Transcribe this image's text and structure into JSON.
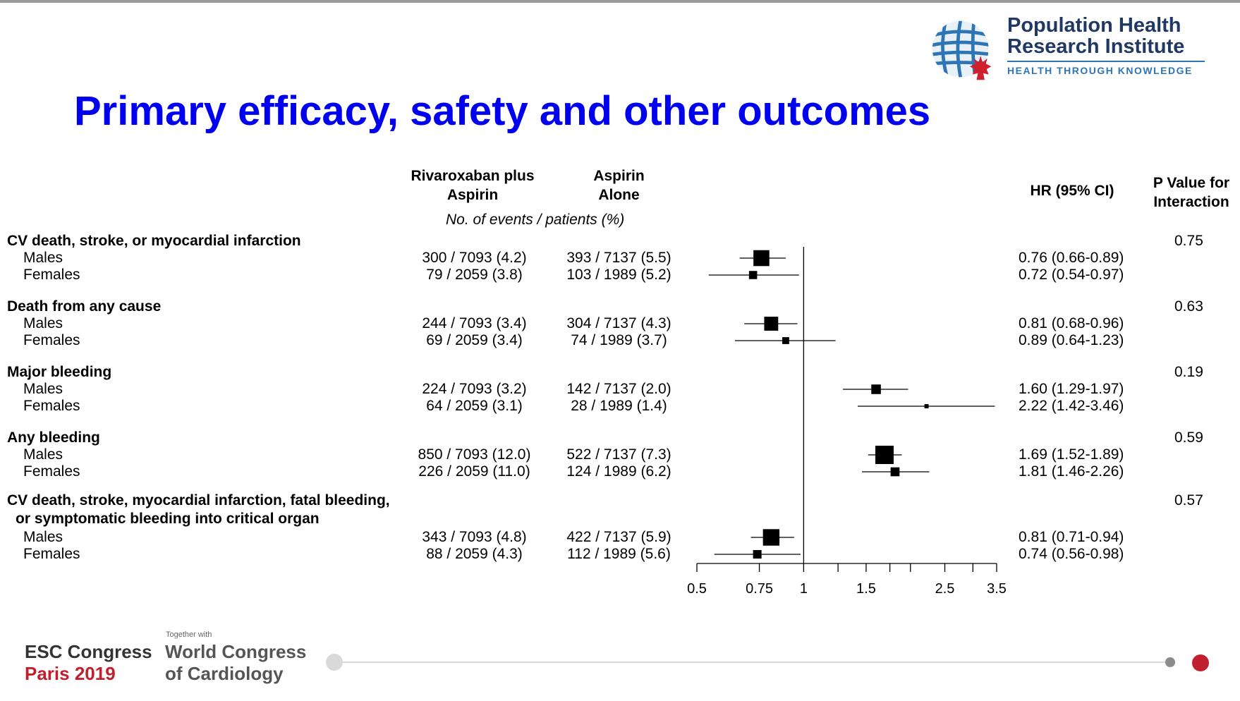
{
  "header": {
    "title": "Primary efficacy, safety and other outcomes",
    "logo": {
      "line1": "Population Health",
      "line2": "Research Institute",
      "tagline": "HEALTH THROUGH KNOWLEDGE",
      "colors": {
        "text": "#1f3864",
        "accent": "#2e75b6",
        "leaf": "#d0202e"
      }
    }
  },
  "columns": {
    "riva_line1": "Rivaroxaban plus",
    "riva_line2": "Aspirin",
    "asp_line1": "Aspirin",
    "asp_line2": "Alone",
    "events_note": "No. of events / patients (%)",
    "hr": "HR (95% CI)",
    "p_line1": "P Value for",
    "p_line2": "Interaction"
  },
  "outcomes": [
    {
      "label": "CV death, stroke, or myocardial infarction",
      "p": "0.75"
    },
    {
      "label": "Death from any cause",
      "p": "0.63"
    },
    {
      "label": "Major bleeding",
      "p": "0.19"
    },
    {
      "label": "Any bleeding",
      "p": "0.59"
    },
    {
      "label": "CV death, stroke, myocardial infarction, fatal bleeding,",
      "label2": "or symptomatic bleeding into critical organ",
      "p": "0.57"
    }
  ],
  "rows": [
    {
      "label": "Males",
      "riva": "300 / 7093 (4.2)",
      "asp": "393 / 7137 (5.5)",
      "hr_text": "0.76 (0.66-0.89)"
    },
    {
      "label": "Females",
      "riva": "79 / 2059 (3.8)",
      "asp": "103 / 1989 (5.2)",
      "hr_text": "0.72 (0.54-0.97)"
    },
    {
      "label": "Males",
      "riva": "244 / 7093 (3.4)",
      "asp": "304 / 7137 (4.3)",
      "hr_text": "0.81 (0.68-0.96)"
    },
    {
      "label": "Females",
      "riva": "69 / 2059 (3.4)",
      "asp": "74 / 1989 (3.7)",
      "hr_text": "0.89 (0.64-1.23)"
    },
    {
      "label": "Males",
      "riva": "224 / 7093 (3.2)",
      "asp": "142 / 7137 (2.0)",
      "hr_text": "1.60 (1.29-1.97)"
    },
    {
      "label": "Females",
      "riva": "64 / 2059 (3.1)",
      "asp": "28 / 1989 (1.4)",
      "hr_text": "2.22 (1.42-3.46)"
    },
    {
      "label": "Males",
      "riva": "850 / 7093 (12.0)",
      "asp": "522 / 7137 (7.3)",
      "hr_text": "1.69 (1.52-1.89)"
    },
    {
      "label": "Females",
      "riva": "226 / 2059 (11.0)",
      "asp": "124 / 1989 (6.2)",
      "hr_text": "1.81 (1.46-2.26)"
    },
    {
      "label": "Males",
      "riva": "343 / 7093 (4.8)",
      "asp": "422 / 7137 (5.9)",
      "hr_text": "0.81 (0.71-0.94)"
    },
    {
      "label": "Females",
      "riva": "88 / 2059 (4.3)",
      "asp": "112 / 1989 (5.6)",
      "hr_text": "0.74 (0.56-0.98)"
    }
  ],
  "chart_data": {
    "type": "forest",
    "x_scale": "log",
    "xlim": [
      0.5,
      3.5
    ],
    "reference_line": 1,
    "ticks": [
      0.5,
      0.75,
      1,
      1.25,
      1.5,
      1.75,
      2,
      2.5,
      3,
      3.5
    ],
    "tick_labels": [
      "0.5",
      "0.75",
      "1",
      "",
      "1.5",
      "",
      "",
      "2.5",
      "",
      "3.5"
    ],
    "points": [
      {
        "group": "CV death, stroke, or myocardial infarction",
        "subgroup": "Males",
        "hr": 0.76,
        "lo": 0.66,
        "hi": 0.89,
        "weight": 393
      },
      {
        "group": "CV death, stroke, or myocardial infarction",
        "subgroup": "Females",
        "hr": 0.72,
        "lo": 0.54,
        "hi": 0.97,
        "weight": 103
      },
      {
        "group": "Death from any cause",
        "subgroup": "Males",
        "hr": 0.81,
        "lo": 0.68,
        "hi": 0.96,
        "weight": 304
      },
      {
        "group": "Death from any cause",
        "subgroup": "Females",
        "hr": 0.89,
        "lo": 0.64,
        "hi": 1.23,
        "weight": 74
      },
      {
        "group": "Major bleeding",
        "subgroup": "Males",
        "hr": 1.6,
        "lo": 1.29,
        "hi": 1.97,
        "weight": 142
      },
      {
        "group": "Major bleeding",
        "subgroup": "Females",
        "hr": 2.22,
        "lo": 1.42,
        "hi": 3.46,
        "weight": 28
      },
      {
        "group": "Any bleeding",
        "subgroup": "Males",
        "hr": 1.69,
        "lo": 1.52,
        "hi": 1.89,
        "weight": 522
      },
      {
        "group": "Any bleeding",
        "subgroup": "Females",
        "hr": 1.81,
        "lo": 1.46,
        "hi": 2.26,
        "weight": 124
      },
      {
        "group": "CV death, stroke, myocardial infarction, fatal bleeding, or symptomatic bleeding into critical organ",
        "subgroup": "Males",
        "hr": 0.81,
        "lo": 0.71,
        "hi": 0.94,
        "weight": 422
      },
      {
        "group": "CV death, stroke, myocardial infarction, fatal bleeding, or symptomatic bleeding into critical organ",
        "subgroup": "Females",
        "hr": 0.74,
        "lo": 0.56,
        "hi": 0.98,
        "weight": 112
      }
    ]
  },
  "footer": {
    "esc_line1": "ESC Congress",
    "esc_line2": "Paris 2019",
    "together": "Together with",
    "wc_line1": "World Congress",
    "wc_line2": "of Cardiology",
    "colors": {
      "esc_red": "#c0202e",
      "grey": "#d9d9d9"
    }
  }
}
